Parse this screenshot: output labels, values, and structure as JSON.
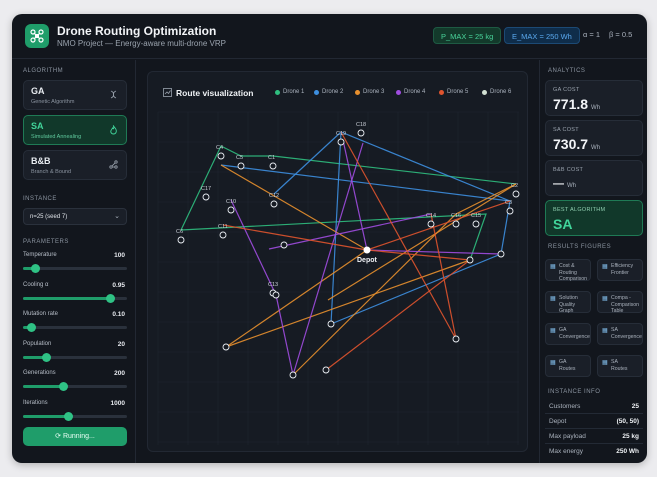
{
  "header": {
    "title": "Drone Routing Optimization",
    "subtitle": "NMO Project — Energy-aware multi-drone VRP",
    "p_max": "P_MAX = 25 kg",
    "e_max": "E_MAX = 250 Wh",
    "alpha": "α = 1",
    "beta": "β = 0.5"
  },
  "left": {
    "algorithm_label": "ALGORITHM",
    "algorithms": [
      {
        "name": "GA",
        "full": "Genetic Algorithm",
        "icon": "dna-icon"
      },
      {
        "name": "SA",
        "full": "Simulated Annealing",
        "icon": "flame-icon"
      },
      {
        "name": "B&B",
        "full": "Branch & Bound",
        "icon": "branch-icon"
      }
    ],
    "instance_label": "INSTANCE",
    "instance_value": "n=25 (seed 7)",
    "parameters_label": "PARAMETERS",
    "params": [
      {
        "label": "Temperature",
        "value": "100",
        "fill": 0.12
      },
      {
        "label": "Cooling α",
        "value": "0.95",
        "fill": 0.84
      },
      {
        "label": "Mutation rate",
        "value": "0.10",
        "fill": 0.08
      },
      {
        "label": "Population",
        "value": "20",
        "fill": 0.22
      },
      {
        "label": "Generations",
        "value": "200",
        "fill": 0.38
      },
      {
        "label": "Iterations",
        "value": "1000",
        "fill": 0.43
      }
    ],
    "run_label": "Running..."
  },
  "viz": {
    "title": "Route visualization",
    "legend": [
      {
        "name": "Drone 1",
        "color": "#2fbf7f"
      },
      {
        "name": "Drone 2",
        "color": "#3d8fe0"
      },
      {
        "name": "Drone 3",
        "color": "#e8902e"
      },
      {
        "name": "Drone 4",
        "color": "#a04de0"
      },
      {
        "name": "Drone 5",
        "color": "#e0542e"
      },
      {
        "name": "Drone 6",
        "color": "#d2e0d2"
      }
    ],
    "depot_label": "Depot",
    "nodes": [
      {
        "id": "C1"
      },
      {
        "id": "C2"
      },
      {
        "id": "C3"
      },
      {
        "id": "C4"
      },
      {
        "id": "C5"
      },
      {
        "id": "C6"
      },
      {
        "id": "C10"
      },
      {
        "id": "C11"
      },
      {
        "id": "C12"
      },
      {
        "id": "C13"
      },
      {
        "id": "C14"
      },
      {
        "id": "C15"
      },
      {
        "id": "C16"
      },
      {
        "id": "C17"
      },
      {
        "id": "C18"
      },
      {
        "id": "C19"
      }
    ]
  },
  "right": {
    "analytics_label": "ANALYTICS",
    "ga_cost_label": "GA COST",
    "ga_cost": "771.8",
    "sa_cost_label": "SA COST",
    "sa_cost": "730.7",
    "bb_cost_label": "B&B COST",
    "bb_cost": "—",
    "unit": "Wh",
    "best_label": "BEST ALGORITHM",
    "best_value": "SA",
    "figures_label": "RESULTS FIGURES",
    "figures": [
      {
        "line1": "Cost &",
        "line2": "Routing",
        "line3": "Comparison"
      },
      {
        "line1": "Efficiency",
        "line2": "Frontier",
        "line3": ""
      },
      {
        "line1": "Solution",
        "line2": "Quality Graph",
        "line3": ""
      },
      {
        "line1": "Compa -",
        "line2": "Comparison",
        "line3": "Table"
      },
      {
        "line1": "GA",
        "line2": "Convergence",
        "line3": ""
      },
      {
        "line1": "SA",
        "line2": "Convergence",
        "line3": ""
      },
      {
        "line1": "GA",
        "line2": "Routes",
        "line3": ""
      },
      {
        "line1": "SA",
        "line2": "Routes",
        "line3": ""
      }
    ],
    "instance_info_label": "INSTANCE INFO",
    "info": [
      {
        "k": "Customers",
        "v": "25"
      },
      {
        "k": "Depot",
        "v": "(50, 50)"
      },
      {
        "k": "Max payload",
        "v": "25 kg"
      },
      {
        "k": "Max energy",
        "v": "250 Wh"
      }
    ]
  }
}
